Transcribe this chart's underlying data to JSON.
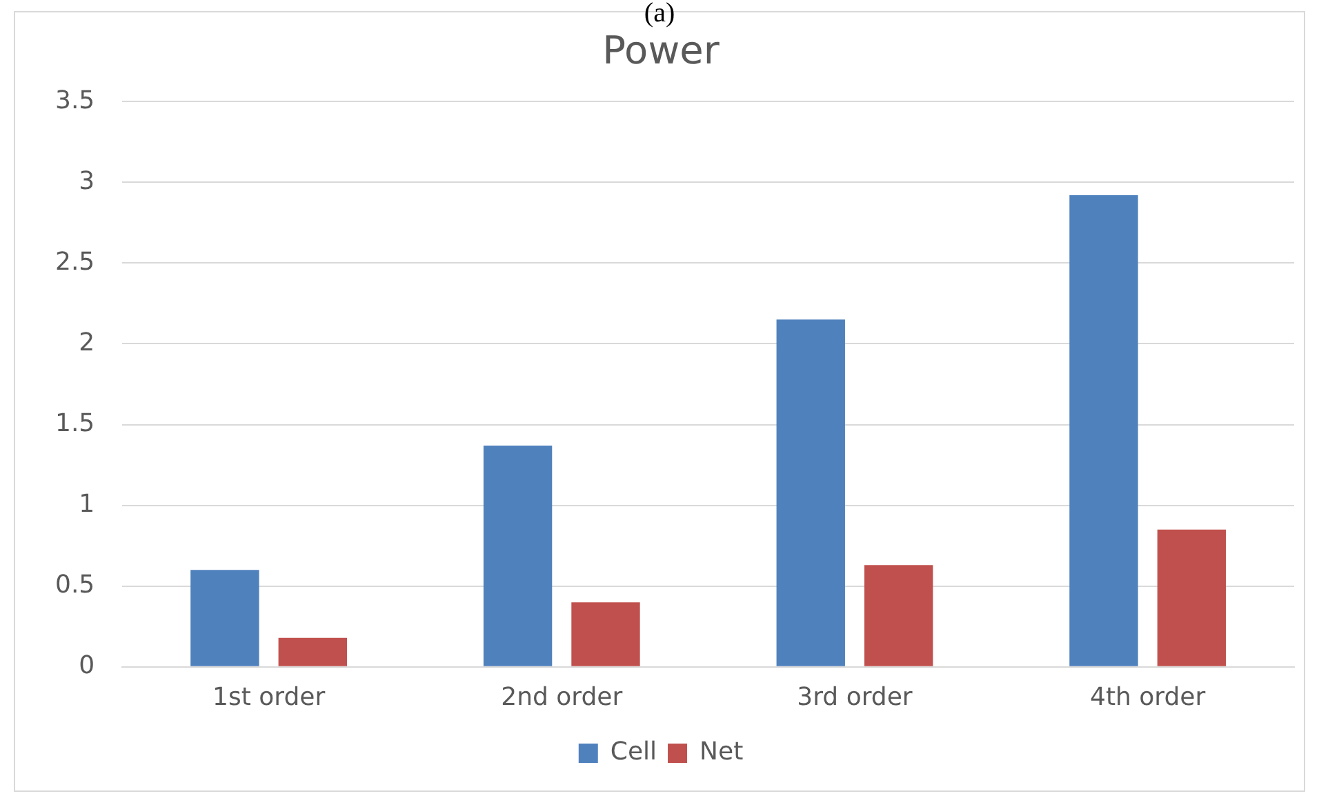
{
  "chart_data": {
    "type": "bar",
    "title": "Power",
    "annotations": [
      "(a)"
    ],
    "categories": [
      "1st order",
      "2nd order",
      "3rd order",
      "4th order"
    ],
    "series": [
      {
        "name": "Cell",
        "color": "#4f81bd",
        "values": [
          0.6,
          1.37,
          2.15,
          2.92
        ]
      },
      {
        "name": "Net",
        "color": "#c0504d",
        "values": [
          0.18,
          0.4,
          0.63,
          0.85
        ]
      }
    ],
    "ylim": [
      0,
      3.5
    ],
    "yticks": [
      0,
      0.5,
      1,
      1.5,
      2,
      2.5,
      3,
      3.5
    ],
    "grid": "y",
    "legend": "bottom"
  }
}
